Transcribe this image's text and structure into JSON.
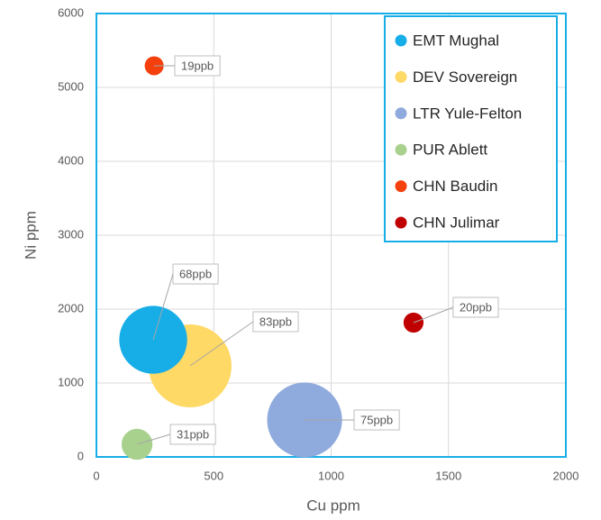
{
  "chart_data": {
    "type": "bubble",
    "x_label": "Cu ppm",
    "y_label": "Ni ppm",
    "xlim": [
      0,
      2000
    ],
    "xticks": [
      0,
      500,
      1000,
      1500,
      2000
    ],
    "ylim": [
      0,
      6000
    ],
    "yticks": [
      0,
      1000,
      2000,
      3000,
      4000,
      5000,
      6000
    ],
    "grid": true,
    "legend": "upper right",
    "series": [
      {
        "name": "EMT Mughal",
        "color": "#17aee8",
        "x": [
          242
        ],
        "values": [
          1585
        ],
        "sizes": [
          68
        ],
        "size_labels": [
          "68ppb"
        ]
      },
      {
        "name": "DEV Sovereign",
        "color": "#ffd966",
        "x": [
          399
        ],
        "values": [
          1232
        ],
        "sizes": [
          83
        ],
        "size_labels": [
          "83ppb"
        ]
      },
      {
        "name": "LTR Yule-Felton",
        "color": "#8faadc",
        "x": [
          887
        ],
        "values": [
          500
        ],
        "sizes": [
          75
        ],
        "size_labels": [
          "75ppb"
        ]
      },
      {
        "name": "PUR Ablett",
        "color": "#a9d18e",
        "x": [
          173
        ],
        "values": [
          171
        ],
        "sizes": [
          31
        ],
        "size_labels": [
          "31ppb"
        ]
      },
      {
        "name": "CHN Baudin",
        "color": "#f4400c",
        "x": [
          246
        ],
        "values": [
          5293
        ],
        "sizes": [
          19
        ],
        "size_labels": [
          "19ppb"
        ]
      },
      {
        "name": "CHN Julimar",
        "color": "#c00000",
        "x": [
          1351
        ],
        "values": [
          1817
        ],
        "sizes": [
          20
        ],
        "size_labels": [
          "20ppb"
        ]
      }
    ]
  }
}
